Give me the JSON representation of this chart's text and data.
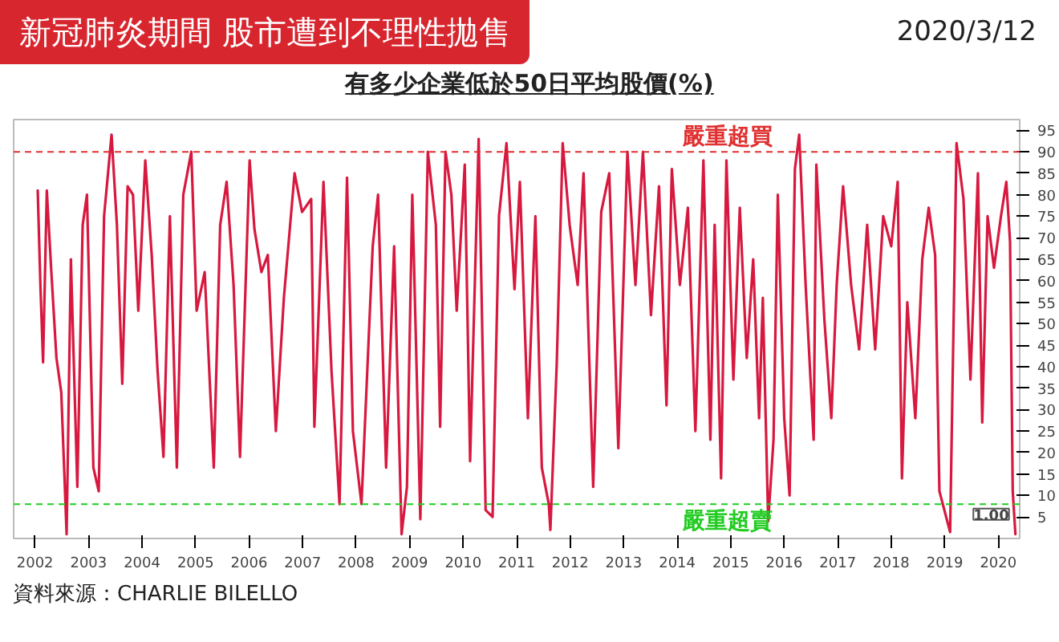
{
  "chart_data": {
    "type": "line",
    "title": "新冠肺炎期間  股市遭到不理性拋售",
    "subtitle": "有多少企業低於50日平均股價(%)",
    "annotations": [
      "2020/3/12",
      "資料來源：CHARLIE BILELLO"
    ],
    "color": "#d7193f",
    "x": [
      2002.05,
      2002.1,
      2002.15,
      2002.22,
      2002.3,
      2002.4,
      2002.49,
      2002.59,
      2002.67,
      2002.79,
      2002.89,
      2002.97,
      2003.09,
      2003.19,
      2003.29,
      2003.43,
      2003.53,
      2003.63,
      2003.73,
      2003.83,
      2003.93,
      2004.06,
      2004.18,
      2004.29,
      2004.4,
      2004.52,
      2004.65,
      2004.77,
      2004.92,
      2005.02,
      2005.17,
      2005.34,
      2005.46,
      2005.58,
      2005.71,
      2005.83,
      2006.01,
      2006.1,
      2006.23,
      2006.35,
      2006.5,
      2006.65,
      2006.85,
      2006.99,
      2007.16,
      2007.22,
      2007.39,
      2007.54,
      2007.69,
      2007.83,
      2007.94,
      2008.1,
      2008.31,
      2008.41,
      2008.56,
      2008.71,
      2008.85,
      2008.95,
      2009.05,
      2009.2,
      2009.34,
      2009.49,
      2009.57,
      2009.67,
      2009.78,
      2009.88,
      2010.03,
      2010.13,
      2010.29,
      2010.42,
      2010.55,
      2010.67,
      2010.81,
      2010.96,
      2011.06,
      2011.21,
      2011.35,
      2011.47,
      2011.6,
      2011.63,
      2011.75,
      2011.86,
      2011.99,
      2012.14,
      2012.25,
      2012.43,
      2012.58,
      2012.73,
      2012.9,
      2013.07,
      2013.22,
      2013.36,
      2013.51,
      2013.66,
      2013.8,
      2013.9,
      2014.05,
      2014.2,
      2014.34,
      2014.49,
      2014.62,
      2014.7,
      2014.82,
      2014.92,
      2015.05,
      2015.17,
      2015.3,
      2015.42,
      2015.53,
      2015.6,
      2015.7,
      2015.8,
      2015.88,
      2016.0,
      2016.1,
      2016.2,
      2016.28,
      2016.4,
      2016.55,
      2016.6,
      2016.75,
      2016.88,
      2016.98,
      2017.1,
      2017.25,
      2017.4,
      2017.55,
      2017.7,
      2017.85,
      2018.0,
      2018.12,
      2018.2,
      2018.3,
      2018.45,
      2018.58,
      2018.7,
      2018.82,
      2018.9,
      2019.1,
      2019.22,
      2019.35,
      2019.48,
      2019.62,
      2019.7,
      2019.8,
      2019.92,
      2020.05,
      2020.15,
      2020.22,
      2020.27,
      2020.32
    ],
    "values": [
      81,
      59,
      41,
      81,
      63,
      42,
      34,
      1,
      65,
      12,
      73,
      80,
      16.5,
      11,
      75,
      94,
      73,
      36,
      82,
      80,
      53,
      88,
      66,
      39,
      19,
      75,
      16.5,
      80,
      90,
      53,
      62,
      16.5,
      73,
      83,
      59,
      19,
      88,
      72,
      62,
      66,
      25,
      56,
      85,
      76,
      79,
      26,
      83,
      39,
      8,
      84,
      25,
      8,
      68,
      80,
      16.5,
      68,
      1,
      12,
      80,
      4.5,
      90,
      73,
      26,
      90,
      80,
      53,
      87,
      18,
      93,
      6.6,
      5,
      75,
      92,
      58,
      83,
      28,
      75,
      16.5,
      8,
      2,
      41,
      92,
      73,
      59,
      85,
      12,
      76,
      85,
      21,
      90,
      59,
      90,
      52,
      82,
      31,
      86,
      59,
      77,
      25,
      88,
      23,
      73,
      14,
      88,
      37,
      77,
      42,
      65,
      28,
      56,
      4,
      23,
      80,
      28,
      10,
      86,
      94,
      59,
      23,
      87,
      51,
      28,
      59,
      82,
      59,
      44,
      73,
      44,
      75,
      68,
      83,
      14,
      55,
      28,
      65,
      77,
      66,
      11,
      1.5,
      92,
      79,
      37,
      85,
      27,
      75,
      63,
      75,
      83,
      69,
      11,
      1
    ],
    "value_labels": [
      null,
      null,
      null,
      null,
      null,
      null,
      null,
      null,
      null,
      null,
      null,
      null,
      null,
      null,
      null,
      null,
      null,
      null,
      null,
      null,
      null,
      null,
      null,
      null,
      null,
      null,
      null,
      null,
      null,
      null,
      null,
      null,
      null,
      null,
      null,
      null,
      null,
      null,
      null,
      null,
      null,
      null,
      null,
      null,
      null,
      null,
      null,
      null,
      null,
      null,
      null,
      null,
      null,
      null,
      null,
      null,
      null,
      null,
      null,
      null,
      null,
      null,
      null,
      null,
      null,
      null,
      null,
      null,
      null,
      null,
      null,
      null,
      null,
      null,
      null,
      null,
      null,
      null,
      null,
      null,
      null,
      null,
      null,
      null,
      null,
      null,
      null,
      null,
      null,
      null,
      null,
      null,
      null,
      null,
      null,
      null,
      null,
      null,
      null,
      null,
      null,
      null,
      null,
      null,
      null,
      null,
      null,
      null,
      null,
      null,
      null,
      null,
      null,
      null,
      null,
      null,
      null,
      null,
      null,
      null,
      null,
      null,
      null,
      null,
      null,
      null,
      null,
      null,
      null,
      null,
      null,
      null,
      null,
      null,
      null,
      null,
      null,
      null,
      null,
      null,
      null,
      null,
      null,
      null,
      null,
      null,
      null,
      null,
      null,
      null,
      "1.00"
    ],
    "xlim": [
      2001.6,
      2020.4
    ],
    "xticks": [
      2002,
      2003,
      2004,
      2005,
      2006,
      2007,
      2008,
      2009,
      2010,
      2011,
      2012,
      2013,
      2014,
      2015,
      2016,
      2017,
      2018,
      2019,
      2020
    ],
    "ylim": [
      0,
      97.5
    ],
    "yticks": [
      5,
      10,
      15,
      20,
      25,
      30,
      35,
      40,
      45,
      50,
      55,
      60,
      65,
      70,
      75,
      80,
      85,
      90,
      95
    ],
    "ref_lines": [
      {
        "axis": "y",
        "value": 90,
        "label": "嚴重超買",
        "color": "#e03030",
        "line_style": "dashed"
      },
      {
        "axis": "y",
        "value": 8,
        "label": "嚴重超賣",
        "color": "#22cc22",
        "line_style": "dashed"
      }
    ]
  }
}
